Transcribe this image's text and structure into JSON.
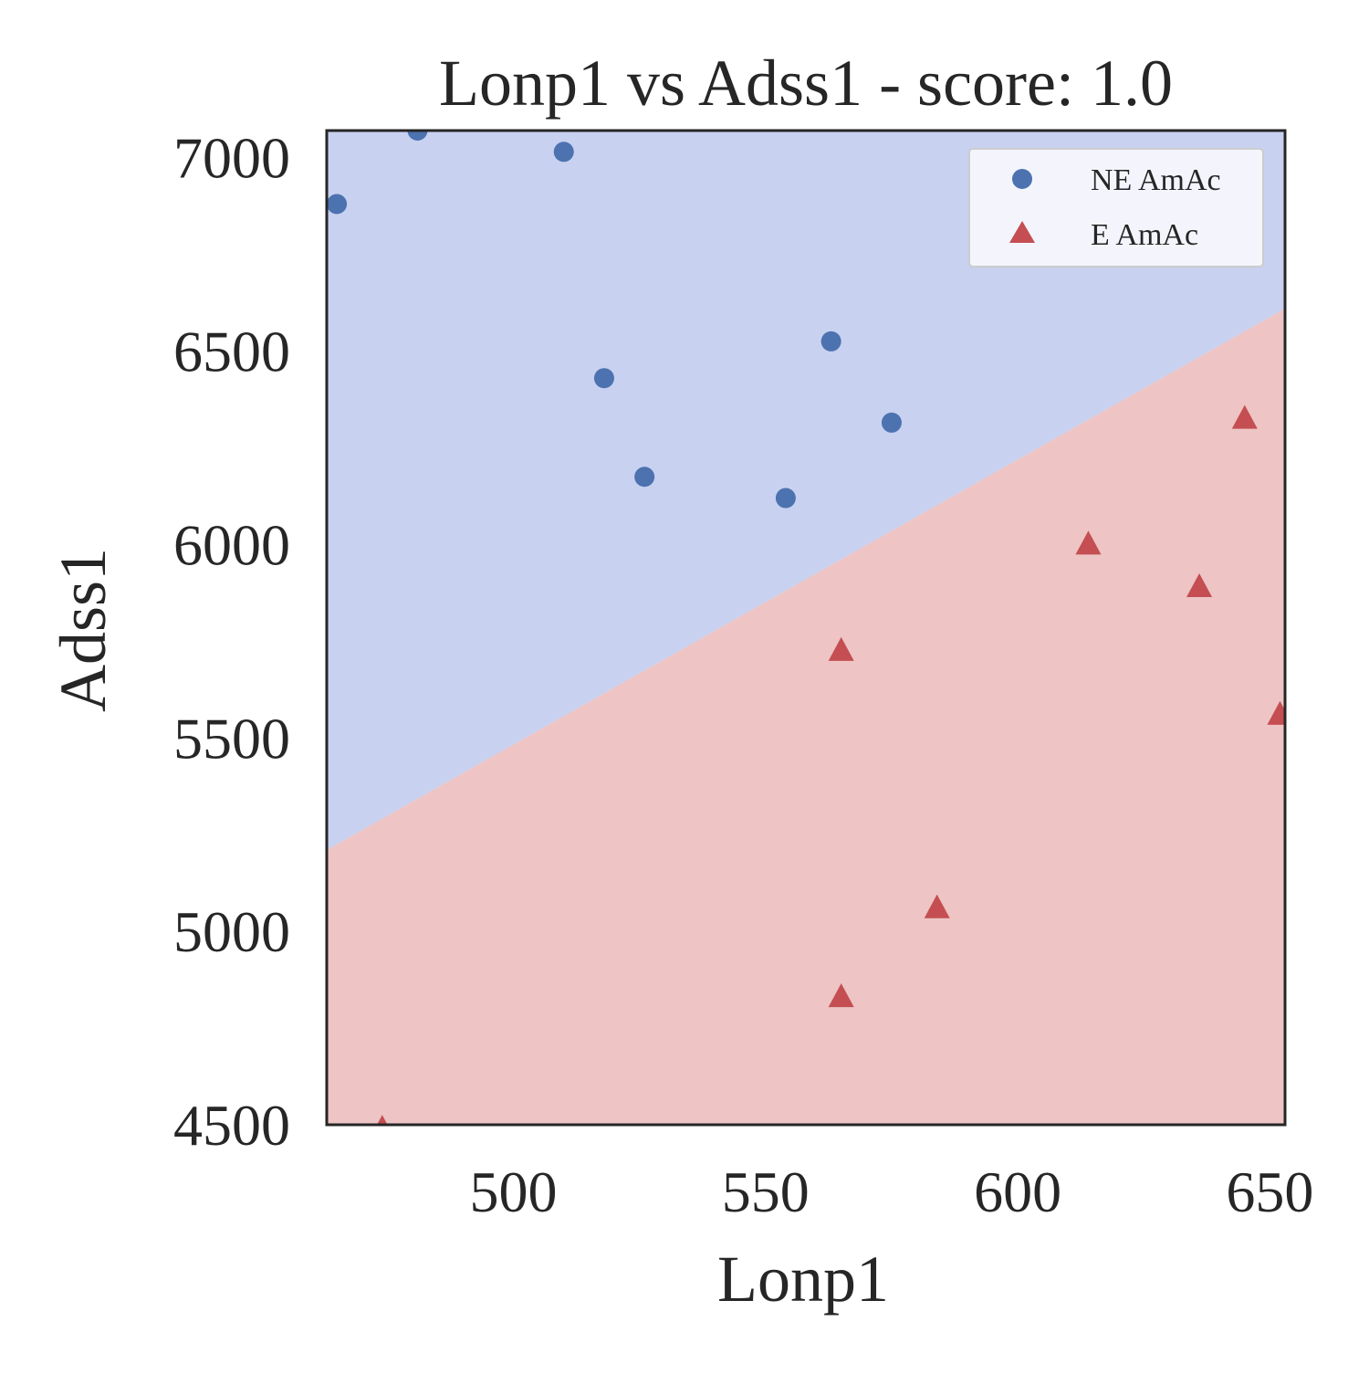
{
  "chart_data": {
    "type": "scatter",
    "title": "Lonp1 vs Adss1 - score: 1.0",
    "xlabel": "Lonp1",
    "ylabel": "Adss1",
    "xlim": [
      463,
      653
    ],
    "ylim": [
      4500,
      7070
    ],
    "xticks": [
      500,
      550,
      600,
      650
    ],
    "yticks": [
      4500,
      5000,
      5500,
      6000,
      6500,
      7000
    ],
    "grid": false,
    "legend_position": "top-right",
    "decision_boundary": {
      "points": [
        [
          463,
          5210
        ],
        [
          653,
          6610
        ]
      ],
      "upper_region_color": "#c8d1f0",
      "lower_region_color": "#eec4c4"
    },
    "series": [
      {
        "name": "NE AmAc",
        "marker": "circle",
        "color": "#4c72b0",
        "points": [
          [
            465,
            6880
          ],
          [
            481,
            7070
          ],
          [
            510,
            7015
          ],
          [
            518,
            6430
          ],
          [
            526,
            6175
          ],
          [
            554,
            6120
          ],
          [
            563,
            6525
          ],
          [
            575,
            6315
          ]
        ]
      },
      {
        "name": "E AmAc",
        "marker": "triangle",
        "color": "#c44e52",
        "points": [
          [
            474,
            4490
          ],
          [
            565,
            4830
          ],
          [
            565,
            5725
          ],
          [
            584,
            5060
          ],
          [
            614,
            6000
          ],
          [
            636,
            5890
          ],
          [
            645,
            6325
          ],
          [
            652,
            5560
          ]
        ]
      }
    ]
  }
}
